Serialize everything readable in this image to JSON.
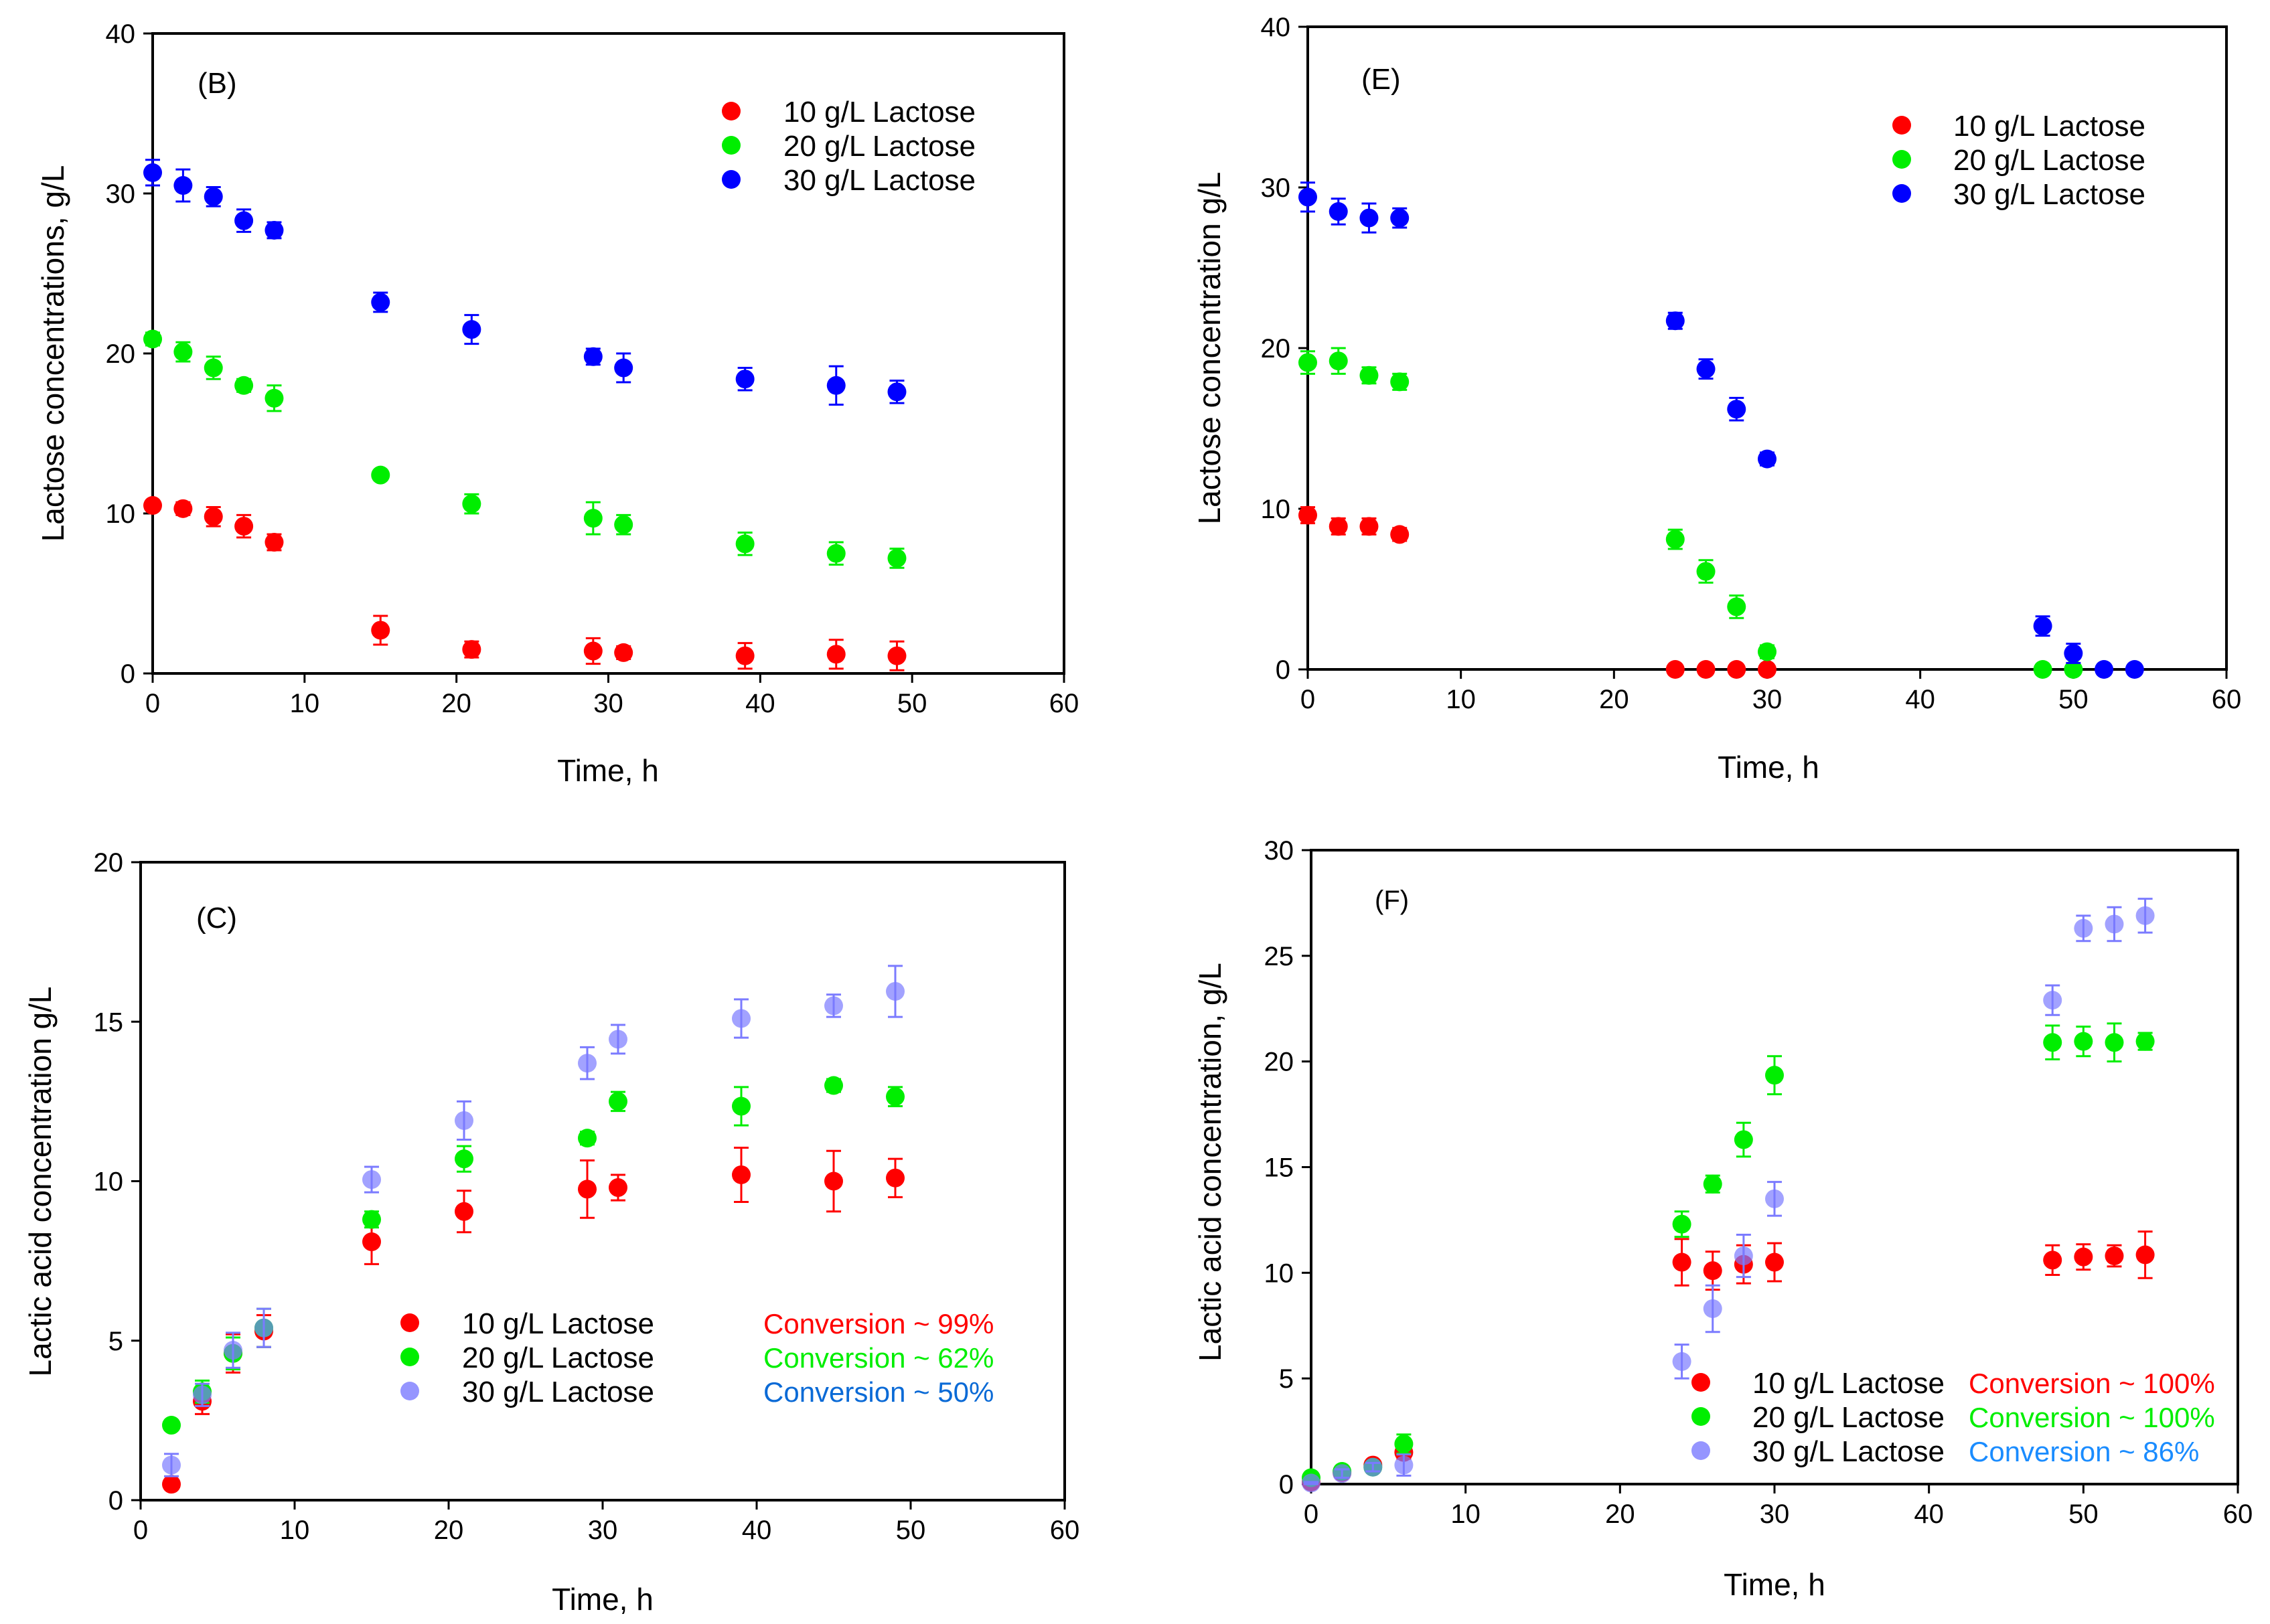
{
  "chart_data": [
    {
      "id": "B",
      "type": "scatter",
      "panel_label": "(B)",
      "xlabel": "Time, h",
      "ylabel": "Lactose concentrations, g/L",
      "xlim": [
        0,
        60
      ],
      "ylim": [
        0,
        40
      ],
      "xticks": [
        0,
        10,
        20,
        30,
        40,
        50,
        60
      ],
      "yticks": [
        0,
        10,
        20,
        30,
        40
      ],
      "legend_position": "top-right",
      "series": [
        {
          "name": "10 g/L Lactose",
          "color": "#ff0000",
          "points": [
            [
              0,
              10.5,
              0.3
            ],
            [
              2,
              10.3,
              0.4
            ],
            [
              4,
              9.8,
              0.6
            ],
            [
              6,
              9.2,
              0.7
            ],
            [
              8,
              8.2,
              0.5
            ],
            [
              15,
              2.7,
              0.9
            ],
            [
              21,
              1.5,
              0.5
            ],
            [
              29,
              1.4,
              0.8
            ],
            [
              31,
              1.3,
              0.4
            ],
            [
              39,
              1.1,
              0.8
            ],
            [
              45,
              1.2,
              0.9
            ],
            [
              49,
              1.1,
              0.9
            ]
          ]
        },
        {
          "name": "20 g/L Lactose",
          "color": "#00ee00",
          "points": [
            [
              0,
              20.9,
              0.4
            ],
            [
              2,
              20.1,
              0.6
            ],
            [
              4,
              19.1,
              0.7
            ],
            [
              6,
              18.0,
              0.4
            ],
            [
              8,
              17.2,
              0.8
            ],
            [
              15,
              12.4,
              0.3
            ],
            [
              21,
              10.6,
              0.6
            ],
            [
              29,
              9.7,
              1.0
            ],
            [
              31,
              9.3,
              0.6
            ],
            [
              39,
              8.1,
              0.7
            ],
            [
              45,
              7.5,
              0.7
            ],
            [
              49,
              7.2,
              0.6
            ]
          ]
        },
        {
          "name": "30 g/L Lactose",
          "color": "#0000ff",
          "points": [
            [
              0,
              31.3,
              0.8
            ],
            [
              2,
              30.5,
              1.0
            ],
            [
              4,
              29.8,
              0.6
            ],
            [
              6,
              28.3,
              0.7
            ],
            [
              8,
              27.7,
              0.5
            ],
            [
              15,
              23.2,
              0.6
            ],
            [
              21,
              21.5,
              0.9
            ],
            [
              29,
              19.8,
              0.5
            ],
            [
              31,
              19.1,
              0.9
            ],
            [
              39,
              18.4,
              0.7
            ],
            [
              45,
              18.0,
              1.2
            ],
            [
              49,
              17.6,
              0.7
            ]
          ]
        }
      ]
    },
    {
      "id": "E",
      "type": "scatter",
      "panel_label": "(E)",
      "xlabel": "Time, h",
      "ylabel": "Lactose concentration g/L",
      "xlim": [
        0,
        60
      ],
      "ylim": [
        0,
        40
      ],
      "xticks": [
        0,
        10,
        20,
        30,
        40,
        50,
        60
      ],
      "yticks": [
        0,
        10,
        20,
        30,
        40
      ],
      "legend_position": "top-right",
      "series": [
        {
          "name": "10 g/L Lactose",
          "color": "#ff0000",
          "points": [
            [
              0,
              9.6,
              0.5
            ],
            [
              2,
              8.9,
              0.5
            ],
            [
              4,
              8.9,
              0.5
            ],
            [
              6,
              8.4,
              0.4
            ],
            [
              24,
              0,
              0
            ],
            [
              26,
              0,
              0
            ],
            [
              28,
              0,
              0
            ],
            [
              30,
              0,
              0
            ]
          ]
        },
        {
          "name": "20 g/L Lactose",
          "color": "#00ee00",
          "points": [
            [
              0,
              19.1,
              0.7
            ],
            [
              2,
              19.2,
              0.8
            ],
            [
              4,
              18.3,
              0.5
            ],
            [
              6,
              17.9,
              0.5
            ],
            [
              24,
              8.1,
              0.6
            ],
            [
              26,
              6.1,
              0.7
            ],
            [
              28,
              3.9,
              0.7
            ],
            [
              30,
              1.1,
              0.4
            ],
            [
              48,
              0,
              0
            ],
            [
              50,
              0,
              0
            ]
          ]
        },
        {
          "name": "30 g/L Lactose",
          "color": "#0000ff",
          "points": [
            [
              0,
              29.4,
              0.9
            ],
            [
              2,
              28.5,
              0.8
            ],
            [
              4,
              28.1,
              0.9
            ],
            [
              6,
              28.1,
              0.6
            ],
            [
              24,
              21.7,
              0.5
            ],
            [
              26,
              18.7,
              0.6
            ],
            [
              28,
              16.2,
              0.7
            ],
            [
              30,
              13.1,
              0.4
            ],
            [
              48,
              2.7,
              0.6
            ],
            [
              50,
              1.0,
              0.6
            ],
            [
              52,
              0,
              0
            ],
            [
              54,
              0,
              0
            ]
          ]
        }
      ]
    },
    {
      "id": "C",
      "type": "scatter",
      "panel_label": "(C)",
      "xlabel": "Time, h",
      "ylabel": "Lactic acid concentration g/L",
      "xlim": [
        0,
        60
      ],
      "ylim": [
        0,
        20
      ],
      "xticks": [
        0,
        10,
        20,
        30,
        40,
        50,
        60
      ],
      "yticks": [
        0,
        5,
        10,
        15,
        20
      ],
      "legend_position": "bottom-center",
      "conversions": [
        {
          "text": "Conversion ~ 99%",
          "color": "#ff0000"
        },
        {
          "text": "Conversion ~ 62%",
          "color": "#00ee00"
        },
        {
          "text": "Conversion ~ 50%",
          "color": "#0a6ad6"
        }
      ],
      "series": [
        {
          "name": "10 g/L Lactose",
          "color": "#ff0000",
          "points": [
            [
              2,
              0.5,
              0.1
            ],
            [
              4,
              3.1,
              0.4
            ],
            [
              6,
              4.6,
              0.6
            ],
            [
              8,
              5.3,
              0.5
            ],
            [
              15,
              8.1,
              0.7
            ],
            [
              21,
              9.05,
              0.65
            ],
            [
              29,
              9.75,
              0.9
            ],
            [
              31,
              9.8,
              0.4
            ],
            [
              39,
              10.2,
              0.85
            ],
            [
              45,
              10.0,
              0.95
            ],
            [
              49,
              10.1,
              0.6
            ]
          ]
        },
        {
          "name": "20 g/L Lactose",
          "color": "#00ee00",
          "points": [
            [
              2,
              2.35,
              0.15
            ],
            [
              4,
              3.4,
              0.35
            ],
            [
              6,
              4.6,
              0.5
            ],
            [
              8,
              5.4,
              0.6
            ],
            [
              15,
              8.8,
              0.25
            ],
            [
              21,
              10.7,
              0.4
            ],
            [
              29,
              11.35,
              0.2
            ],
            [
              31,
              12.5,
              0.3
            ],
            [
              39,
              12.35,
              0.6
            ],
            [
              45,
              13.0,
              0.2
            ],
            [
              49,
              12.65,
              0.3
            ]
          ]
        },
        {
          "name": "30 g/L Lactose",
          "color": "#7b7bff",
          "points": [
            [
              2,
              1.1,
              0.35
            ],
            [
              4,
              3.3,
              0.35
            ],
            [
              6,
              4.7,
              0.55
            ],
            [
              8,
              5.4,
              0.6
            ],
            [
              15,
              10.05,
              0.4
            ],
            [
              21,
              11.9,
              0.6
            ],
            [
              29,
              13.7,
              0.5
            ],
            [
              31,
              14.45,
              0.45
            ],
            [
              39,
              15.1,
              0.6
            ],
            [
              45,
              15.5,
              0.35
            ],
            [
              49,
              15.95,
              0.8
            ]
          ]
        }
      ]
    },
    {
      "id": "F",
      "type": "scatter",
      "panel_label": "(F)",
      "xlabel": "Time, h",
      "ylabel": "Lactic acid concentration, g/L",
      "xlim": [
        0,
        60
      ],
      "ylim": [
        0,
        30
      ],
      "xticks": [
        0,
        10,
        20,
        30,
        40,
        50,
        60
      ],
      "yticks": [
        0,
        5,
        10,
        15,
        20,
        25,
        30
      ],
      "legend_position": "bottom-right",
      "conversions": [
        {
          "text": "Conversion ~ 100%",
          "color": "#ff0000"
        },
        {
          "text": "Conversion ~ 100%",
          "color": "#00ee00"
        },
        {
          "text": "Conversion ~ 86%",
          "color": "#1a8cff"
        }
      ],
      "series": [
        {
          "name": "10 g/L Lactose",
          "color": "#ff0000",
          "points": [
            [
              0,
              0.1,
              0.05
            ],
            [
              2,
              0.55,
              0.15
            ],
            [
              4,
              0.9,
              0.2
            ],
            [
              6,
              1.5,
              0.3
            ],
            [
              24,
              10.5,
              1.1
            ],
            [
              26,
              10.1,
              0.9
            ],
            [
              28,
              10.4,
              0.9
            ],
            [
              30,
              10.5,
              0.9
            ],
            [
              48,
              10.6,
              0.7
            ],
            [
              50,
              10.75,
              0.6
            ],
            [
              52,
              10.8,
              0.5
            ],
            [
              54,
              10.85,
              1.1
            ]
          ]
        },
        {
          "name": "20 g/L Lactose",
          "color": "#00ee00",
          "points": [
            [
              0,
              0.3,
              0.1
            ],
            [
              2,
              0.6,
              0.2
            ],
            [
              4,
              0.8,
              0.2
            ],
            [
              6,
              1.9,
              0.45
            ],
            [
              24,
              12.3,
              0.6
            ],
            [
              26,
              14.2,
              0.4
            ],
            [
              28,
              16.3,
              0.8
            ],
            [
              30,
              19.35,
              0.9
            ],
            [
              48,
              20.9,
              0.8
            ],
            [
              50,
              20.95,
              0.7
            ],
            [
              52,
              20.9,
              0.9
            ],
            [
              54,
              20.95,
              0.4
            ]
          ]
        },
        {
          "name": "30 g/L Lactose",
          "color": "#7b7bff",
          "points": [
            [
              0,
              0.05,
              0.05
            ],
            [
              2,
              0.5,
              0.2
            ],
            [
              4,
              0.8,
              0.2
            ],
            [
              6,
              0.9,
              0.5
            ],
            [
              24,
              5.8,
              0.8
            ],
            [
              26,
              8.3,
              1.1
            ],
            [
              28,
              10.8,
              1.0
            ],
            [
              30,
              13.5,
              0.8
            ],
            [
              48,
              22.9,
              0.7
            ],
            [
              50,
              26.3,
              0.6
            ],
            [
              52,
              26.5,
              0.8
            ],
            [
              54,
              26.9,
              0.8
            ]
          ]
        }
      ]
    }
  ]
}
